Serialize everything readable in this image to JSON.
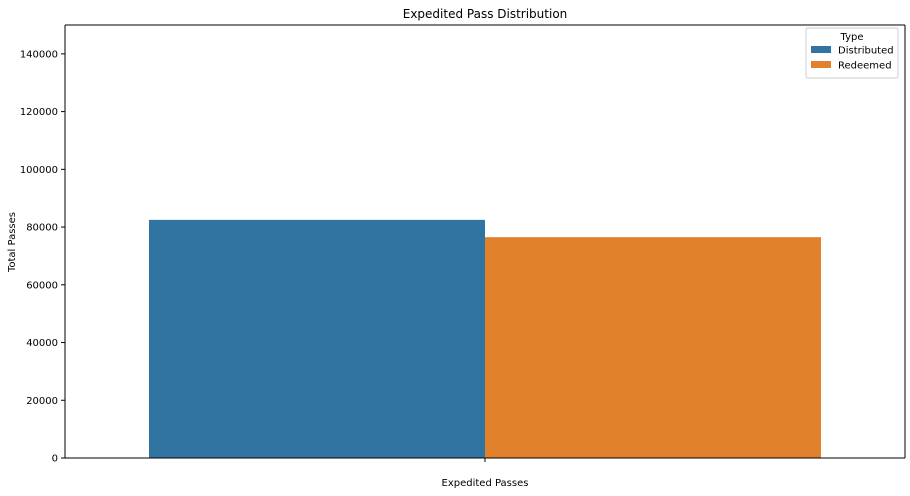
{
  "chart_data": {
    "type": "bar",
    "title": "Expedited Pass Distribution",
    "xlabel": "Expedited Passes",
    "ylabel": "Total Passes",
    "categories": [
      ""
    ],
    "series": [
      {
        "name": "Distributed",
        "values": [
          82500
        ],
        "color": "#3274a1"
      },
      {
        "name": "Redeemed",
        "values": [
          76500
        ],
        "color": "#e1812c"
      }
    ],
    "ylim": [
      0,
      150000
    ],
    "yticks": [
      0,
      20000,
      40000,
      60000,
      80000,
      100000,
      120000,
      140000
    ],
    "grid": false,
    "legend": {
      "title": "Type",
      "placement": "top-right"
    }
  }
}
